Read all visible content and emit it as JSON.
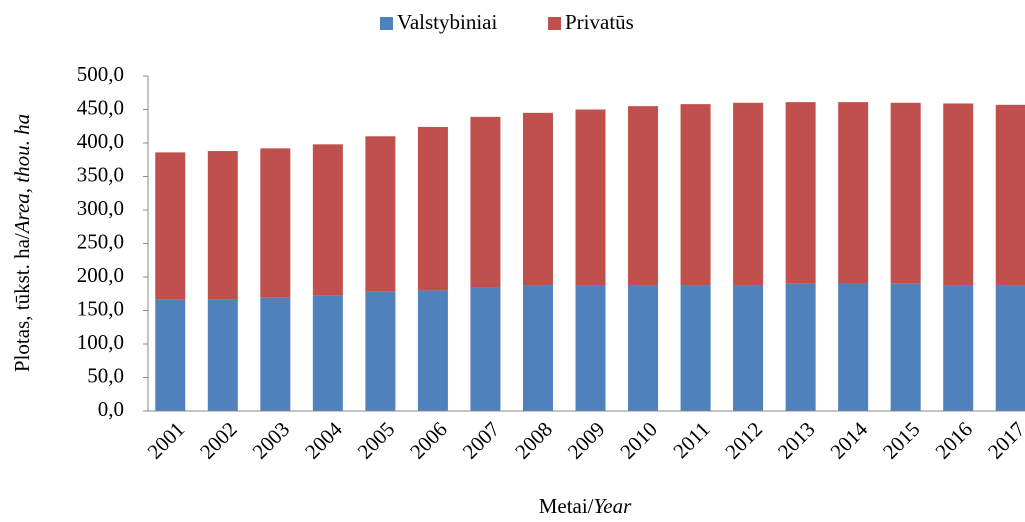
{
  "chart_data": {
    "type": "stacked_bar",
    "y_label": [
      "Plotas, tūkst. ha/",
      "Area, thou. ha"
    ],
    "x_label": [
      "Metai/",
      "Year"
    ],
    "categories": [
      "2001",
      "2002",
      "2003",
      "2004",
      "2005",
      "2006",
      "2007",
      "2008",
      "2009",
      "2010",
      "2011",
      "2012",
      "2013",
      "2014",
      "2015",
      "2016",
      "2017"
    ],
    "series": [
      {
        "name": "Valstybiniai",
        "color": "#4f81bd",
        "values": [
          166,
          166,
          169,
          172,
          178,
          180,
          185,
          188,
          188,
          188,
          188,
          188,
          190,
          191,
          190,
          188,
          188
        ]
      },
      {
        "name": "Privatūs",
        "color": "#c0504d",
        "values": [
          220,
          222,
          223,
          226,
          232,
          244,
          254,
          257,
          262,
          267,
          270,
          272,
          271,
          270,
          270,
          271,
          269
        ]
      }
    ],
    "ylim": [
      0,
      500
    ],
    "yticks": [
      {
        "value": 0,
        "label": "0,0"
      },
      {
        "value": 50,
        "label": "50,0"
      },
      {
        "value": 100,
        "label": "100,0"
      },
      {
        "value": 150,
        "label": "150,0"
      },
      {
        "value": 200,
        "label": "200,0"
      },
      {
        "value": 250,
        "label": "250,0"
      },
      {
        "value": 300,
        "label": "300,0"
      },
      {
        "value": 350,
        "label": "350,0"
      },
      {
        "value": 400,
        "label": "400,0"
      },
      {
        "value": 450,
        "label": "450,0"
      },
      {
        "value": 500,
        "label": "500,0"
      }
    ],
    "legend": "top"
  }
}
